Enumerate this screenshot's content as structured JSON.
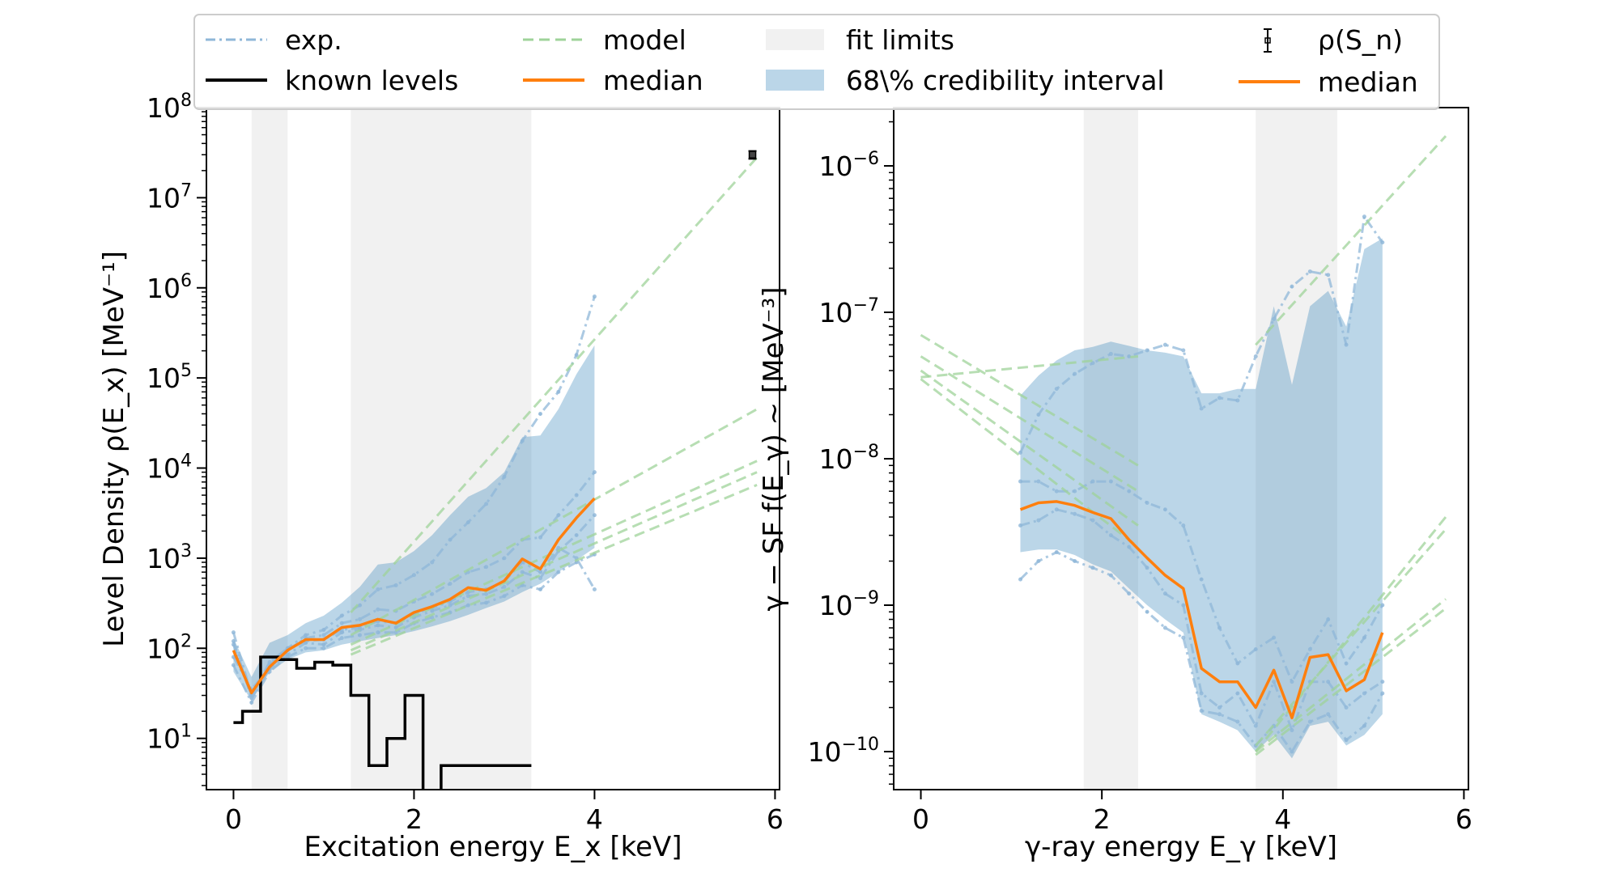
{
  "legend": {
    "exp": "exp.",
    "known_levels": "known levels",
    "model": "model",
    "median": "median",
    "fit_limits": "fit limits",
    "ci": "68\\% credibility interval",
    "rho_sn": "ρ(S_n)",
    "median_right": "median"
  },
  "colors": {
    "exp": "#8fb7d8",
    "model": "#9fd39a",
    "median": "#ff7f0e",
    "band": "#1f77b4",
    "fit": "#d8d8d8",
    "known": "#000000"
  },
  "chart_data": [
    {
      "type": "line",
      "xlabel": "Excitation energy E_x [keV]",
      "ylabel": "Level Density ρ(E_x) [MeV⁻¹]",
      "yscale": "log",
      "xlim": [
        -0.3,
        6.05
      ],
      "ylim": [
        2.7,
        100000000
      ],
      "x_ticks": [
        0,
        2,
        4,
        6
      ],
      "y_ticks": [
        10,
        100,
        1000,
        10000,
        100000,
        1000000,
        10000000,
        100000000
      ],
      "y_tick_labels": [
        {
          "base": "10",
          "exp": "1"
        },
        {
          "base": "10",
          "exp": "2"
        },
        {
          "base": "10",
          "exp": "3"
        },
        {
          "base": "10",
          "exp": "4"
        },
        {
          "base": "10",
          "exp": "5"
        },
        {
          "base": "10",
          "exp": "6"
        },
        {
          "base": "10",
          "exp": "7"
        },
        {
          "base": "10",
          "exp": "8"
        }
      ],
      "fit_limits": [
        [
          0.2,
          0.6
        ],
        [
          1.3,
          3.3
        ]
      ],
      "ci_band": {
        "x": [
          0,
          0.2,
          0.4,
          0.6,
          0.8,
          1.0,
          1.2,
          1.4,
          1.6,
          1.8,
          2.0,
          2.2,
          2.4,
          2.6,
          2.8,
          3.0,
          3.2,
          3.4,
          3.6,
          3.8,
          4.0
        ],
        "lower": [
          55,
          26,
          55,
          75,
          90,
          95,
          110,
          120,
          130,
          140,
          155,
          175,
          200,
          235,
          280,
          330,
          420,
          520,
          700,
          950,
          1300
        ],
        "upper": [
          130,
          48,
          115,
          140,
          190,
          230,
          320,
          480,
          850,
          900,
          1200,
          1800,
          3000,
          4800,
          6000,
          9000,
          22000,
          23000,
          45000,
          110000,
          230000
        ]
      },
      "median": {
        "x": [
          0,
          0.2,
          0.4,
          0.6,
          0.8,
          1.0,
          1.2,
          1.4,
          1.6,
          1.8,
          2.0,
          2.2,
          2.4,
          2.6,
          2.8,
          3.0,
          3.2,
          3.4,
          3.6,
          3.8,
          4.0
        ],
        "y": [
          95,
          32,
          62,
          95,
          125,
          125,
          170,
          180,
          210,
          190,
          250,
          290,
          350,
          470,
          440,
          560,
          980,
          760,
          1600,
          2800,
          4600
        ]
      },
      "exp_curves": [
        {
          "x": [
            0,
            0.2,
            0.4,
            0.6,
            0.8,
            1.0,
            1.2,
            1.4,
            1.6,
            1.8,
            2.0,
            2.2,
            2.4,
            2.6,
            2.8,
            3.0,
            3.2,
            3.4,
            3.6,
            3.8,
            4.0
          ],
          "y": [
            150,
            30,
            65,
            100,
            140,
            160,
            230,
            300,
            450,
            500,
            650,
            900,
            1600,
            2500,
            4000,
            8000,
            20000,
            40000,
            70000,
            180000,
            800000
          ]
        },
        {
          "x": [
            0,
            0.2,
            0.4,
            0.6,
            0.8,
            1.0,
            1.2,
            1.4,
            1.6,
            1.8,
            2.0,
            2.2,
            2.4,
            2.6,
            2.8,
            3.0,
            3.2,
            3.4,
            3.6,
            3.8,
            4.0
          ],
          "y": [
            120,
            28,
            60,
            95,
            130,
            140,
            190,
            210,
            270,
            260,
            330,
            400,
            520,
            700,
            800,
            1000,
            1600,
            1700,
            3000,
            5000,
            9000
          ]
        },
        {
          "x": [
            0,
            0.2,
            0.4,
            0.6,
            0.8,
            1.0,
            1.2,
            1.4,
            1.6,
            1.8,
            2.0,
            2.2,
            2.4,
            2.6,
            2.8,
            3.0,
            3.2,
            3.4,
            3.6,
            3.8,
            4.0
          ],
          "y": [
            80,
            35,
            60,
            85,
            115,
            110,
            150,
            160,
            180,
            170,
            220,
            260,
            300,
            380,
            400,
            480,
            700,
            600,
            1200,
            1800,
            3000
          ]
        },
        {
          "x": [
            0,
            0.2,
            0.4,
            0.6,
            0.8,
            1.0,
            1.2,
            1.4,
            1.6,
            1.8,
            2.0,
            2.2,
            2.4,
            2.6,
            2.8,
            3.0,
            3.2,
            3.4,
            3.6,
            3.8,
            4.0
          ],
          "y": [
            65,
            25,
            55,
            80,
            100,
            100,
            130,
            140,
            150,
            150,
            190,
            220,
            250,
            300,
            320,
            380,
            500,
            450,
            700,
            900,
            1100
          ]
        },
        {
          "x": [
            0,
            0.2,
            0.4,
            0.6,
            0.8,
            1.0,
            1.2,
            1.4,
            1.6,
            1.8,
            2.0,
            2.2,
            2.4,
            2.6,
            2.8,
            3.0,
            3.2,
            3.4,
            3.6,
            3.8,
            4.0
          ],
          "y": [
            110,
            30,
            70,
            100,
            120,
            125,
            160,
            170,
            200,
            190,
            240,
            280,
            330,
            420,
            450,
            550,
            900,
            700,
            1300,
            1000,
            450
          ]
        }
      ],
      "model_curves": [
        {
          "x": [
            1.3,
            5.8
          ],
          "y": [
            250,
            28000000
          ]
        },
        {
          "x": [
            1.3,
            5.8
          ],
          "y": [
            140,
            45000
          ]
        },
        {
          "x": [
            1.3,
            5.8
          ],
          "y": [
            110,
            12000
          ]
        },
        {
          "x": [
            1.3,
            5.8
          ],
          "y": [
            95,
            9000
          ]
        },
        {
          "x": [
            1.3,
            5.8
          ],
          "y": [
            85,
            6500
          ]
        }
      ],
      "known_levels": {
        "x": [
          0,
          0.1,
          0.3,
          0.5,
          0.7,
          0.9,
          1.1,
          1.3,
          1.5,
          1.7,
          1.9,
          2.1,
          2.3,
          2.5,
          2.7,
          2.9,
          3.1,
          3.3
        ],
        "y": [
          15,
          20,
          80,
          75,
          60,
          70,
          65,
          30,
          5,
          10,
          30,
          1,
          5,
          5,
          5,
          5,
          5,
          5
        ]
      },
      "rho_sn_point": {
        "x": 5.75,
        "y": 30000000,
        "y_low": 27000000,
        "y_high": 33000000
      }
    },
    {
      "type": "line",
      "xlabel": "γ-ray energy E_γ [keV]",
      "ylabel": "γ − SF f(E_γ) ~ [MeV⁻³]",
      "yscale": "log",
      "xlim": [
        -0.3,
        6.05
      ],
      "ylim": [
        5.5e-11,
        2.5e-06
      ],
      "x_ticks": [
        0,
        2,
        4,
        6
      ],
      "y_ticks": [
        1e-10,
        1e-09,
        1e-08,
        1e-07,
        1e-06
      ],
      "y_tick_labels": [
        {
          "base": "10",
          "exp": "−10"
        },
        {
          "base": "10",
          "exp": "−9"
        },
        {
          "base": "10",
          "exp": "−8"
        },
        {
          "base": "10",
          "exp": "−7"
        },
        {
          "base": "10",
          "exp": "−6"
        }
      ],
      "fit_limits": [
        [
          1.8,
          2.4
        ],
        [
          3.7,
          4.6
        ]
      ],
      "ci_band": {
        "x": [
          1.1,
          1.3,
          1.5,
          1.7,
          1.9,
          2.1,
          2.3,
          2.5,
          2.7,
          2.9,
          3.1,
          3.3,
          3.5,
          3.7,
          3.9,
          4.1,
          4.3,
          4.5,
          4.7,
          4.9,
          5.1
        ],
        "lower": [
          2.3e-09,
          2.4e-09,
          2.4e-09,
          2.2e-09,
          1.9e-09,
          1.7e-09,
          1.3e-09,
          1e-09,
          8e-10,
          6.5e-10,
          1.8e-10,
          1.6e-10,
          1.4e-10,
          1e-10,
          1.3e-10,
          9e-11,
          1.5e-10,
          1.6e-10,
          1.1e-10,
          1.3e-10,
          1.8e-10
        ],
        "upper": [
          2.7e-08,
          3.7e-08,
          4.7e-08,
          5.5e-08,
          5.8e-08,
          6.3e-08,
          5.9e-08,
          5.5e-08,
          5.3e-08,
          5e-08,
          2.8e-08,
          2.8e-08,
          3e-08,
          3e-08,
          1.1e-07,
          3.2e-08,
          1.1e-07,
          1.4e-07,
          8e-08,
          2.7e-07,
          3.2e-07
        ]
      },
      "median": {
        "x": [
          1.1,
          1.3,
          1.5,
          1.7,
          1.9,
          2.1,
          2.3,
          2.5,
          2.7,
          2.9,
          3.1,
          3.3,
          3.5,
          3.7,
          3.9,
          4.1,
          4.3,
          4.5,
          4.7,
          4.9,
          5.1
        ],
        "y": [
          4.5e-09,
          5e-09,
          5.1e-09,
          4.8e-09,
          4.3e-09,
          3.9e-09,
          2.8e-09,
          2.1e-09,
          1.6e-09,
          1.3e-09,
          3.7e-10,
          3e-10,
          3e-10,
          2e-10,
          3.6e-10,
          1.7e-10,
          4.4e-10,
          4.6e-10,
          2.6e-10,
          3.1e-10,
          6.5e-10
        ]
      },
      "exp_curves": [
        {
          "x": [
            1.1,
            1.3,
            1.5,
            1.7,
            1.9,
            2.1,
            2.3,
            2.5,
            2.7,
            2.9,
            3.1,
            3.3,
            3.5,
            3.7,
            3.9,
            4.1,
            4.3,
            4.5,
            4.7,
            4.9,
            5.1
          ],
          "y": [
            1.1e-08,
            2e-08,
            3e-08,
            3.8e-08,
            4.5e-08,
            5.2e-08,
            5e-08,
            5.5e-08,
            6e-08,
            5.5e-08,
            2.2e-08,
            2.6e-08,
            2.5e-08,
            5e-08,
            9e-08,
            1.5e-07,
            1.9e-07,
            1.8e-07,
            6e-08,
            4.5e-07,
            3e-07
          ]
        },
        {
          "x": [
            1.1,
            1.3,
            1.5,
            1.7,
            1.9,
            2.1,
            2.3,
            2.5,
            2.7,
            2.9,
            3.1,
            3.3,
            3.5,
            3.7,
            3.9,
            4.1,
            4.3,
            4.5,
            4.7,
            4.9,
            5.1
          ],
          "y": [
            7e-09,
            7e-09,
            6e-09,
            6e-09,
            7e-09,
            7e-09,
            6e-09,
            5e-09,
            4.5e-09,
            3.5e-09,
            1.5e-09,
            7e-10,
            4e-10,
            5e-10,
            6e-10,
            3e-10,
            5e-10,
            8e-10,
            4e-10,
            6e-10,
            1e-09
          ]
        },
        {
          "x": [
            1.1,
            1.3,
            1.5,
            1.7,
            1.9,
            2.1,
            2.3,
            2.5,
            2.7,
            2.9,
            3.1,
            3.3,
            3.5,
            3.7,
            3.9,
            4.1,
            4.3,
            4.5,
            4.7,
            4.9,
            5.1
          ],
          "y": [
            3.5e-09,
            3.8e-09,
            4.5e-09,
            4.2e-09,
            3.8e-09,
            3e-09,
            2.5e-09,
            1.8e-09,
            1.2e-09,
            1e-09,
            2.5e-10,
            2e-10,
            2.5e-10,
            1.5e-10,
            3e-10,
            1.4e-10,
            3e-10,
            3e-10,
            2e-10,
            2.5e-10,
            3e-10
          ]
        },
        {
          "x": [
            1.1,
            1.3,
            1.5,
            1.7,
            1.9,
            2.1,
            2.3,
            2.5,
            2.7,
            2.9,
            3.1,
            3.3,
            3.5,
            3.7,
            3.9,
            4.1,
            4.3,
            4.5,
            4.7,
            4.9,
            5.1
          ],
          "y": [
            1.5e-09,
            2e-09,
            2.3e-09,
            2e-09,
            1.8e-09,
            1.6e-09,
            1.2e-09,
            9e-10,
            7e-10,
            6e-10,
            1.9e-10,
            1.8e-10,
            1.6e-10,
            1.1e-10,
            1.5e-10,
            1e-10,
            1.6e-10,
            1.8e-10,
            1.2e-10,
            1.5e-10,
            2.5e-10
          ]
        }
      ],
      "model_curves": [
        {
          "x": [
            0,
            2.4
          ],
          "y": [
            7e-08,
            9e-09
          ]
        },
        {
          "x": [
            0,
            2.4
          ],
          "y": [
            5e-08,
            6e-09
          ]
        },
        {
          "x": [
            0,
            2.4
          ],
          "y": [
            3.6e-08,
            5e-08
          ]
        },
        {
          "x": [
            0,
            2.4
          ],
          "y": [
            4e-08,
            3.5e-09
          ]
        },
        {
          "x": [
            0,
            2.4
          ],
          "y": [
            3.5e-08,
            2.5e-09
          ]
        },
        {
          "x": [
            3.7,
            5.8
          ],
          "y": [
            6e-08,
            1.6e-06
          ]
        },
        {
          "x": [
            3.7,
            5.8
          ],
          "y": [
            1e-10,
            4e-09
          ]
        },
        {
          "x": [
            3.7,
            5.8
          ],
          "y": [
            1.1e-10,
            3.3e-09
          ]
        },
        {
          "x": [
            3.7,
            5.8
          ],
          "y": [
            1e-10,
            1.1e-09
          ]
        },
        {
          "x": [
            3.7,
            5.8
          ],
          "y": [
            9.5e-11,
            9.5e-10
          ]
        }
      ]
    }
  ]
}
